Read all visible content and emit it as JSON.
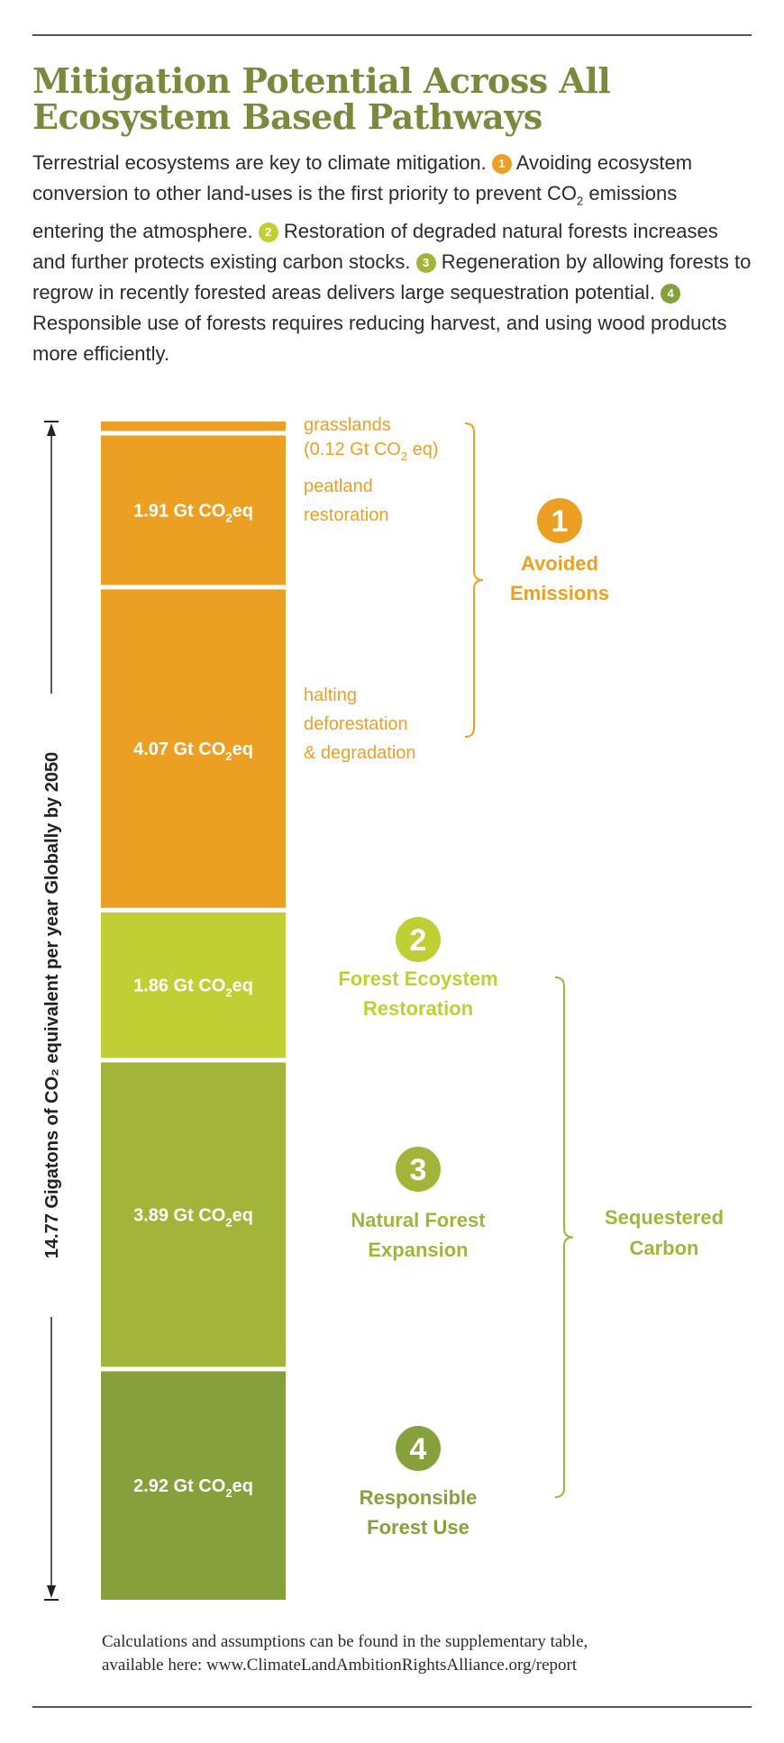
{
  "header": {
    "title_line1": "Mitigation Potential Across All",
    "title_line2": "Ecosystem Based Pathways"
  },
  "intro": {
    "s1": "Terrestrial ecosystems are key to climate mitigation.",
    "n1": "1",
    "s2a": "Avoiding ecosystem conversion to other land-uses is the first priority to prevent CO",
    "s2sub": "2",
    "s2b": " emissions entering the atmosphere.",
    "n2": "2",
    "s3": "Restoration of degraded natural forests increases and further protects existing carbon stocks.",
    "n3": "3",
    "s4": "Regeneration by allowing forests to regrow in recently forested areas delivers large sequestration potential.",
    "n4": "4",
    "s5": "Responsible use of forests requires reducing harvest, and using wood products more efficiently."
  },
  "colors": {
    "orange": "#eba024",
    "lime": "#bfcf34",
    "green": "#a2b53a",
    "olive": "#86a03c",
    "title": "#7a8a3c"
  },
  "chart_data": {
    "type": "bar",
    "orientation": "stacked-vertical",
    "total": 14.77,
    "unit": "Gt CO2eq",
    "axis_label": "14.77 Gigatons of CO₂ equivalent per year Globally by 2050",
    "segments": [
      {
        "name": "grasslands",
        "label_line1": "grasslands",
        "label_line2": "(0.12 Gt CO",
        "label_sub": "2",
        "label_end": " eq)",
        "value": 0.12,
        "value_text": "",
        "color": "#eba024",
        "group": 1
      },
      {
        "name": "peatland restoration",
        "label_line1": "peatland",
        "label_line2": "restoration",
        "value": 1.91,
        "value_text": "1.91 Gt CO",
        "color": "#eba024",
        "group": 1
      },
      {
        "name": "halting deforestation & degradation",
        "label_line1": "halting",
        "label_line2": "deforestation",
        "label_line3": "& degradation",
        "value": 4.07,
        "value_text": "4.07 Gt CO",
        "color": "#eba024",
        "group": 1
      },
      {
        "name": "Forest Ecoystem Restoration",
        "value": 1.86,
        "value_text": "1.86 Gt CO",
        "color": "#bfcf34",
        "group": 2
      },
      {
        "name": "Natural Forest Expansion",
        "value": 3.89,
        "value_text": "3.89 Gt CO",
        "color": "#a2b53a",
        "group": 3
      },
      {
        "name": "Responsible Forest Use",
        "value": 2.92,
        "value_text": "2.92 Gt CO",
        "color": "#86a03c",
        "group": 4
      }
    ],
    "value_sub": "2",
    "value_suffix": "eq",
    "groups": [
      {
        "number": "1",
        "line1": "Avoided",
        "line2": "Emissions",
        "color": "#eba024"
      },
      {
        "number": "2",
        "line1": "Forest Ecoystem",
        "line2": "Restoration",
        "color": "#bfcf34"
      },
      {
        "number": "3",
        "line1": "Natural Forest",
        "line2": "Expansion",
        "color": "#a2b53a"
      },
      {
        "number": "4",
        "line1": "Responsible",
        "line2": "Forest Use",
        "color": "#86a03c"
      }
    ],
    "bracket_label_line1": "Sequestered",
    "bracket_label_line2": "Carbon",
    "bracket_color": "#a2b53a"
  },
  "footer": {
    "line1": "Calculations and assumptions can be found in the supplementary table,",
    "line2": "available here: www.ClimateLandAmbitionRightsAlliance.org/report"
  }
}
